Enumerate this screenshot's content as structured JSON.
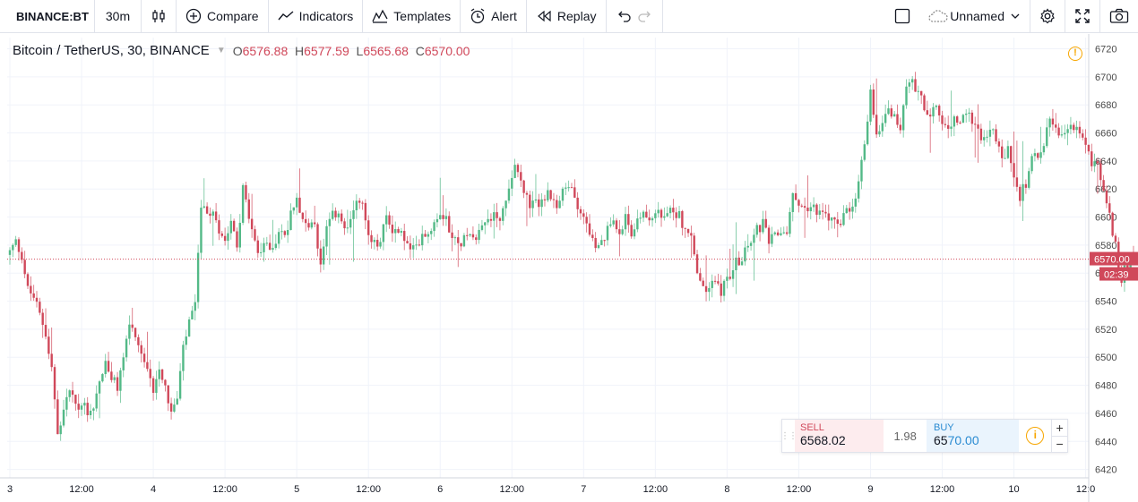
{
  "toolbar": {
    "symbol": "BINANCE:BT",
    "interval": "30m",
    "compare": "Compare",
    "indicators": "Indicators",
    "templates": "Templates",
    "alert": "Alert",
    "replay": "Replay",
    "layout_name": "Unnamed"
  },
  "legend": {
    "title": "Bitcoin / TetherUS, 30, BINANCE",
    "open_label": "O",
    "open": "6576.88",
    "high_label": "H",
    "high": "6577.59",
    "low_label": "L",
    "low": "6565.68",
    "close_label": "C",
    "close": "6570.00"
  },
  "trade_panel": {
    "sell_label": "SELL",
    "sell_price": "6568.02",
    "spread": "1.98",
    "buy_label": "BUY",
    "buy_price_prefix": "65",
    "buy_price_suffix": "70.00",
    "plus": "+",
    "minus": "−"
  },
  "colors": {
    "up": "#53b987",
    "down": "#d0485a",
    "grid": "#f0f3fa",
    "axis_text": "#4a4a4a"
  },
  "chart_data": {
    "type": "candlestick",
    "y_ticks": [
      6420,
      6440,
      6460,
      6480,
      6500,
      6520,
      6540,
      6560,
      6580,
      6600,
      6620,
      6640,
      6660,
      6680,
      6700,
      6720
    ],
    "ylim": [
      6414,
      6728
    ],
    "x_ticks": [
      "3",
      "12:00",
      "4",
      "12:00",
      "5",
      "12:00",
      "6",
      "12:00",
      "7",
      "12:00",
      "8",
      "12:00",
      "9",
      "12:00",
      "10",
      "12:0"
    ],
    "bars_per_day": 48,
    "last_price": "6570.00",
    "countdown": "02:39",
    "anchors": [
      [
        0,
        6575
      ],
      [
        2,
        6582
      ],
      [
        4,
        6573
      ],
      [
        6,
        6548
      ],
      [
        8,
        6543
      ],
      [
        10,
        6530
      ],
      [
        12,
        6518
      ],
      [
        14,
        6492
      ],
      [
        16,
        6445
      ],
      [
        17,
        6450
      ],
      [
        19,
        6470
      ],
      [
        21,
        6475
      ],
      [
        23,
        6460
      ],
      [
        24,
        6470
      ],
      [
        26,
        6462
      ],
      [
        28,
        6465
      ],
      [
        30,
        6483
      ],
      [
        32,
        6495
      ],
      [
        34,
        6485
      ],
      [
        36,
        6478
      ],
      [
        38,
        6500
      ],
      [
        40,
        6525
      ],
      [
        42,
        6510
      ],
      [
        44,
        6500
      ],
      [
        46,
        6488
      ],
      [
        48,
        6478
      ],
      [
        50,
        6494
      ],
      [
        52,
        6480
      ],
      [
        54,
        6460
      ],
      [
        56,
        6470
      ],
      [
        58,
        6505
      ],
      [
        60,
        6525
      ],
      [
        62,
        6535
      ],
      [
        64,
        6610
      ],
      [
        66,
        6598
      ],
      [
        68,
        6605
      ],
      [
        70,
        6592
      ],
      [
        72,
        6585
      ],
      [
        74,
        6600
      ],
      [
        76,
        6580
      ],
      [
        78,
        6620
      ],
      [
        80,
        6600
      ],
      [
        82,
        6580
      ],
      [
        84,
        6572
      ],
      [
        86,
        6585
      ],
      [
        88,
        6575
      ],
      [
        90,
        6592
      ],
      [
        92,
        6585
      ],
      [
        94,
        6605
      ],
      [
        96,
        6615
      ],
      [
        98,
        6600
      ],
      [
        100,
        6590
      ],
      [
        102,
        6595
      ],
      [
        104,
        6565
      ],
      [
        106,
        6590
      ],
      [
        108,
        6600
      ],
      [
        110,
        6605
      ],
      [
        112,
        6590
      ],
      [
        114,
        6595
      ],
      [
        116,
        6615
      ],
      [
        118,
        6608
      ],
      [
        120,
        6585
      ],
      [
        122,
        6580
      ],
      [
        124,
        6582
      ],
      [
        126,
        6600
      ],
      [
        128,
        6592
      ],
      [
        130,
        6590
      ],
      [
        132,
        6585
      ],
      [
        134,
        6575
      ],
      [
        136,
        6578
      ],
      [
        138,
        6590
      ],
      [
        140,
        6588
      ],
      [
        142,
        6598
      ],
      [
        144,
        6605
      ],
      [
        146,
        6600
      ],
      [
        148,
        6585
      ],
      [
        150,
        6580
      ],
      [
        152,
        6585
      ],
      [
        154,
        6590
      ],
      [
        156,
        6588
      ],
      [
        158,
        6595
      ],
      [
        160,
        6598
      ],
      [
        162,
        6602
      ],
      [
        164,
        6600
      ],
      [
        166,
        6610
      ],
      [
        168,
        6632
      ],
      [
        170,
        6635
      ],
      [
        172,
        6620
      ],
      [
        174,
        6605
      ],
      [
        176,
        6610
      ],
      [
        178,
        6612
      ],
      [
        180,
        6615
      ],
      [
        182,
        6608
      ],
      [
        184,
        6612
      ],
      [
        186,
        6620
      ],
      [
        188,
        6620
      ],
      [
        190,
        6610
      ],
      [
        192,
        6600
      ],
      [
        194,
        6590
      ],
      [
        196,
        6575
      ],
      [
        198,
        6580
      ],
      [
        200,
        6590
      ],
      [
        202,
        6598
      ],
      [
        204,
        6592
      ],
      [
        206,
        6598
      ],
      [
        208,
        6590
      ],
      [
        210,
        6595
      ],
      [
        212,
        6605
      ],
      [
        214,
        6598
      ],
      [
        216,
        6602
      ],
      [
        218,
        6600
      ],
      [
        220,
        6600
      ],
      [
        222,
        6605
      ],
      [
        224,
        6602
      ],
      [
        226,
        6590
      ],
      [
        228,
        6585
      ],
      [
        230,
        6560
      ],
      [
        232,
        6548
      ],
      [
        234,
        6550
      ],
      [
        236,
        6555
      ],
      [
        238,
        6548
      ],
      [
        240,
        6555
      ],
      [
        242,
        6565
      ],
      [
        244,
        6570
      ],
      [
        246,
        6575
      ],
      [
        248,
        6585
      ],
      [
        250,
        6590
      ],
      [
        252,
        6595
      ],
      [
        254,
        6582
      ],
      [
        256,
        6585
      ],
      [
        258,
        6590
      ],
      [
        260,
        6590
      ],
      [
        262,
        6614
      ],
      [
        264,
        6612
      ],
      [
        266,
        6605
      ],
      [
        268,
        6608
      ],
      [
        270,
        6606
      ],
      [
        272,
        6600
      ],
      [
        274,
        6600
      ],
      [
        276,
        6595
      ],
      [
        278,
        6598
      ],
      [
        280,
        6602
      ],
      [
        282,
        6603
      ],
      [
        284,
        6625
      ],
      [
        286,
        6650
      ],
      [
        288,
        6690
      ],
      [
        290,
        6660
      ],
      [
        292,
        6670
      ],
      [
        294,
        6680
      ],
      [
        296,
        6670
      ],
      [
        298,
        6665
      ],
      [
        300,
        6690
      ],
      [
        302,
        6695
      ],
      [
        304,
        6692
      ],
      [
        306,
        6680
      ],
      [
        308,
        6670
      ],
      [
        310,
        6678
      ],
      [
        312,
        6668
      ],
      [
        314,
        6660
      ],
      [
        316,
        6670
      ],
      [
        318,
        6665
      ],
      [
        320,
        6675
      ],
      [
        322,
        6670
      ],
      [
        324,
        6660
      ],
      [
        326,
        6658
      ],
      [
        328,
        6662
      ],
      [
        330,
        6655
      ],
      [
        332,
        6640
      ],
      [
        334,
        6648
      ],
      [
        336,
        6625
      ],
      [
        338,
        6615
      ],
      [
        340,
        6625
      ],
      [
        342,
        6640
      ],
      [
        344,
        6645
      ],
      [
        346,
        6655
      ],
      [
        348,
        6668
      ],
      [
        350,
        6660
      ],
      [
        352,
        6655
      ],
      [
        354,
        6662
      ],
      [
        356,
        6665
      ],
      [
        358,
        6660
      ],
      [
        360,
        6648
      ],
      [
        362,
        6640
      ],
      [
        364,
        6635
      ],
      [
        366,
        6620
      ],
      [
        368,
        6600
      ],
      [
        370,
        6578
      ],
      [
        372,
        6555
      ],
      [
        374,
        6568
      ],
      [
        376,
        6575
      ],
      [
        378,
        6570
      ]
    ]
  }
}
